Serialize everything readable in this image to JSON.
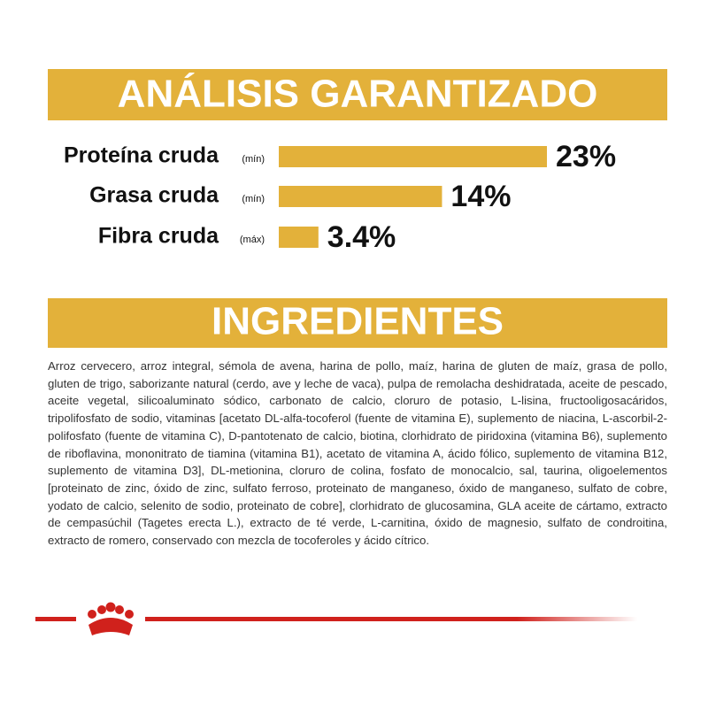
{
  "chart_data": {
    "type": "bar",
    "orientation": "horizontal",
    "title": "ANÁLISIS GARANTIZADO",
    "categories": [
      "Proteína cruda",
      "Grasa cruda",
      "Fibra cruda"
    ],
    "qualifiers": [
      "(mín)",
      "(mín)",
      "(máx)"
    ],
    "values": [
      23,
      14,
      3.4
    ],
    "value_labels": [
      "23%",
      "14%",
      "3.4%"
    ],
    "color": "#e3b13a",
    "xlim": [
      0,
      23
    ]
  },
  "ingredients": {
    "title": "INGREDIENTES",
    "text": "Arroz cervecero, arroz integral, sémola de avena, harina de pollo, maíz, harina de gluten de maíz, grasa de pollo, gluten de trigo, saborizante natural (cerdo, ave y leche de vaca), pulpa de remolacha deshidratada, aceite de pescado, aceite vegetal, silicoaluminato sódico, carbonato de calcio, cloruro de potasio, L-lisina, fructooligosacáridos, tripolifosfato de sodio, vitaminas [acetato DL-alfa-tocoferol (fuente de vitamina E), suplemento de niacina, L-ascorbil-2-polifosfato (fuente de vitamina C), D-pantotenato de calcio, biotina, clorhidrato de piridoxina (vitamina B6), suplemento de riboflavina, mononitrato de tiamina (vitamina B1), acetato de vitamina A, ácido fólico, suplemento de vitamina B12, suplemento de vitamina D3], DL-metionina, cloruro de colina, fosfato de monocalcio, sal, taurina, oligoelementos [proteinato de zinc, óxido de zinc, sulfato ferroso, proteinato de manganeso, óxido de manganeso, sulfato de cobre, yodato de calcio, selenito de sodio, proteinato de cobre], clorhidrato de glucosamina, GLA aceite de cártamo, extracto de cempasúchil (Tagetes erecta L.), extracto de té verde, L-carnitina, óxido de magnesio, sulfato de condroitina, extracto de romero, conservado con mezcla de tocoferoles y ácido cítrico."
  }
}
